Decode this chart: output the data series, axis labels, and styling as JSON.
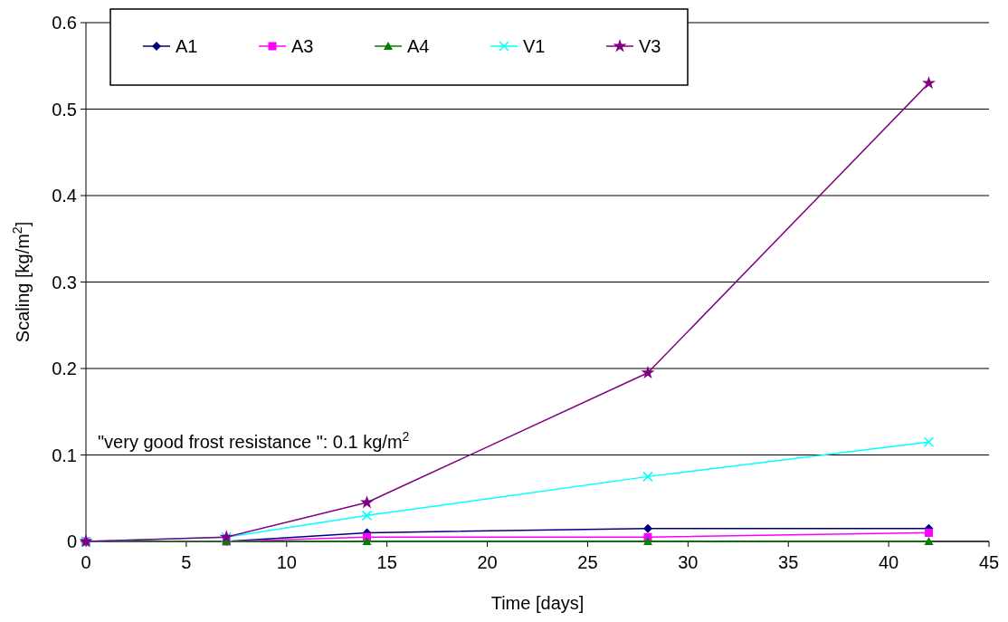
{
  "chart_data": {
    "type": "line",
    "xlabel": "Time [days]",
    "ylabel": "Scaling [kg/m$^{2}$]",
    "x": [
      0,
      7,
      14,
      28,
      42
    ],
    "series": [
      {
        "name": "A1",
        "color": "#000080",
        "marker": "diamond",
        "values": [
          0,
          0,
          0.01,
          0.015,
          0.015
        ]
      },
      {
        "name": "A3",
        "color": "#ff00ff",
        "marker": "square",
        "values": [
          0,
          0,
          0.005,
          0.005,
          0.01
        ]
      },
      {
        "name": "A4",
        "color": "#008000",
        "marker": "triangle",
        "values": [
          0,
          0,
          0,
          0,
          0
        ]
      },
      {
        "name": "V1",
        "color": "#00ffff",
        "marker": "cross",
        "values": [
          0,
          0.005,
          0.03,
          0.075,
          0.115
        ]
      },
      {
        "name": "V3",
        "color": "#800080",
        "marker": "star",
        "values": [
          0,
          0.005,
          0.045,
          0.195,
          0.53
        ]
      }
    ],
    "xlim": [
      0,
      45
    ],
    "xticks": [
      0,
      5,
      10,
      15,
      20,
      25,
      30,
      35,
      40,
      45
    ],
    "ylim": [
      0,
      0.6
    ],
    "yticks": [
      0,
      0.1,
      0.2,
      0.3,
      0.4,
      0.5,
      0.6
    ],
    "grid": "y",
    "legend": "top left",
    "line_style": "solid",
    "annotations": [
      "\"very good frost resistance \": 0.1 kg/m$^{2}$"
    ]
  }
}
